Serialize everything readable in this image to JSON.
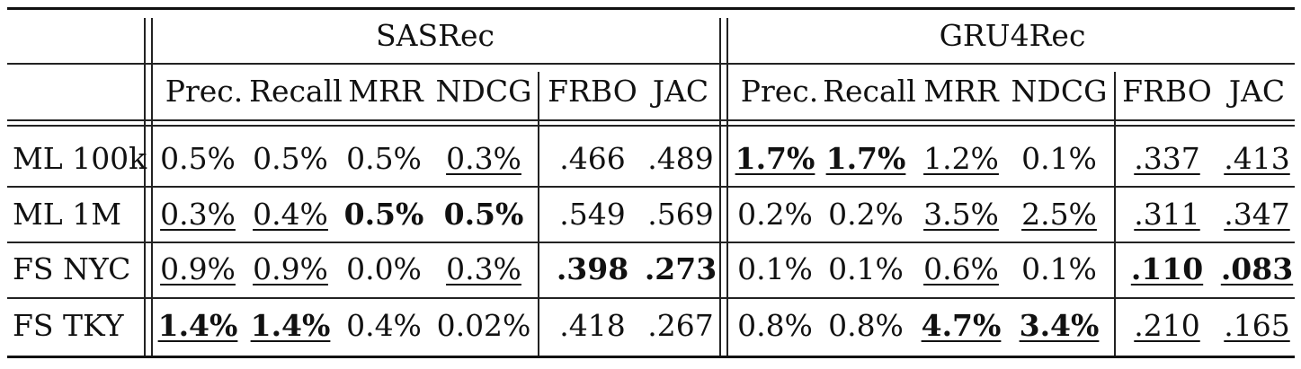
{
  "groups": [
    "SASRec",
    "GRU4Rec"
  ],
  "metric_headers": [
    "Prec.",
    "Recall",
    "MRR",
    "NDCG",
    "FRBO",
    "JAC",
    "Prec.",
    "Recall",
    "MRR",
    "NDCG",
    "FRBO",
    "JAC"
  ],
  "rows": [
    {
      "label": "ML 100k",
      "cells": [
        {
          "v": "0.5%"
        },
        {
          "v": "0.5%"
        },
        {
          "v": "0.5%"
        },
        {
          "v": "0.3%",
          "u": true
        },
        {
          "v": ".466"
        },
        {
          "v": ".489"
        },
        {
          "v": "1.7%",
          "b": true,
          "u": true
        },
        {
          "v": "1.7%",
          "b": true,
          "u": true
        },
        {
          "v": "1.2%",
          "u": true
        },
        {
          "v": "0.1%"
        },
        {
          "v": ".337",
          "u": true
        },
        {
          "v": ".413",
          "u": true
        }
      ]
    },
    {
      "label": "ML 1M",
      "cells": [
        {
          "v": "0.3%",
          "u": true
        },
        {
          "v": "0.4%",
          "u": true
        },
        {
          "v": "0.5%",
          "b": true
        },
        {
          "v": "0.5%",
          "b": true
        },
        {
          "v": ".549"
        },
        {
          "v": ".569"
        },
        {
          "v": "0.2%"
        },
        {
          "v": "0.2%"
        },
        {
          "v": "3.5%",
          "u": true
        },
        {
          "v": "2.5%",
          "u": true
        },
        {
          "v": ".311",
          "u": true
        },
        {
          "v": ".347",
          "u": true
        }
      ]
    },
    {
      "label": "FS NYC",
      "cells": [
        {
          "v": "0.9%",
          "u": true
        },
        {
          "v": "0.9%",
          "u": true
        },
        {
          "v": "0.0%"
        },
        {
          "v": "0.3%",
          "u": true
        },
        {
          "v": ".398",
          "b": true
        },
        {
          "v": ".273",
          "b": true
        },
        {
          "v": "0.1%"
        },
        {
          "v": "0.1%"
        },
        {
          "v": "0.6%",
          "u": true
        },
        {
          "v": "0.1%"
        },
        {
          "v": ".110",
          "b": true,
          "u": true
        },
        {
          "v": ".083",
          "b": true,
          "u": true
        }
      ]
    },
    {
      "label": "FS TKY",
      "cells": [
        {
          "v": "1.4%",
          "b": true,
          "u": true
        },
        {
          "v": "1.4%",
          "b": true,
          "u": true
        },
        {
          "v": "0.4%"
        },
        {
          "v": "0.02%"
        },
        {
          "v": ".418"
        },
        {
          "v": ".267"
        },
        {
          "v": "0.8%"
        },
        {
          "v": "0.8%"
        },
        {
          "v": "4.7%",
          "b": true,
          "u": true
        },
        {
          "v": "3.4%",
          "b": true,
          "u": true
        },
        {
          "v": ".210",
          "u": true
        },
        {
          "v": ".165",
          "u": true
        }
      ]
    }
  ]
}
